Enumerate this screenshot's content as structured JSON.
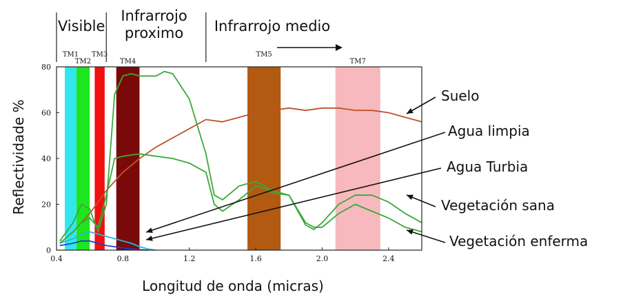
{
  "chart_data": {
    "type": "line",
    "xlabel": "Longitud de onda (micras)",
    "ylabel": "Reflectividade %",
    "xlim": [
      0.4,
      2.6
    ],
    "ylim": [
      0,
      80
    ],
    "x_ticks": [
      0.4,
      0.8,
      1.2,
      1.6,
      2.0,
      2.4
    ],
    "x_tick_labels": [
      "0.4",
      "0.8",
      "1.2",
      "1.6",
      "2.0",
      "2.4"
    ],
    "y_ticks": [
      0,
      20,
      40,
      60,
      80
    ],
    "y_tick_labels": [
      "0",
      "20",
      "40",
      "60",
      "80"
    ],
    "grid": false,
    "regions": [
      {
        "label": "Visible",
        "line2": "",
        "from": 0.4,
        "to": 0.7
      },
      {
        "label": "Infrarrojo",
        "line2": "proximo",
        "from": 0.7,
        "to": 1.3
      },
      {
        "label": "Infrarrojo medio",
        "line2": "",
        "from": 1.3,
        "to": 2.6
      }
    ],
    "bands": [
      {
        "name": "TM1",
        "from": 0.45,
        "to": 0.52,
        "color": "#33e6ee"
      },
      {
        "name": "TM2",
        "from": 0.52,
        "to": 0.6,
        "color": "#1ee61e"
      },
      {
        "name": "TM3",
        "from": 0.63,
        "to": 0.69,
        "color": "#f01010"
      },
      {
        "name": "TM4",
        "from": 0.76,
        "to": 0.9,
        "color": "#7a0a0a"
      },
      {
        "name": "TM5",
        "from": 1.55,
        "to": 1.75,
        "color": "#b35a12"
      },
      {
        "name": "TM7",
        "from": 2.08,
        "to": 2.35,
        "color": "#f7b9bd"
      }
    ],
    "series": [
      {
        "name": "Suelo",
        "color": "#c0522a",
        "x": [
          0.42,
          0.5,
          0.6,
          0.7,
          0.8,
          0.9,
          1.0,
          1.1,
          1.2,
          1.3,
          1.4,
          1.5,
          1.6,
          1.7,
          1.8,
          1.9,
          2.0,
          2.1,
          2.2,
          2.3,
          2.4,
          2.5,
          2.6
        ],
        "y": [
          3,
          8,
          16,
          26,
          34,
          40,
          45,
          49,
          53,
          57,
          56,
          58,
          60,
          61,
          62,
          61,
          62,
          62,
          61,
          61,
          60,
          58,
          56
        ]
      },
      {
        "name": "Agua limpia",
        "color": "#1a3ec8",
        "x": [
          0.42,
          0.5,
          0.55,
          0.6,
          0.65,
          0.7,
          0.75,
          0.8,
          0.85,
          0.9,
          0.95
        ],
        "y": [
          2,
          3,
          4,
          4,
          3,
          2,
          1.5,
          1,
          0.5,
          0.2,
          0
        ]
      },
      {
        "name": "Agua Turbia",
        "color": "#22b8d8",
        "x": [
          0.42,
          0.5,
          0.55,
          0.6,
          0.65,
          0.7,
          0.75,
          0.8,
          0.85,
          0.9,
          0.95,
          1.0
        ],
        "y": [
          3,
          5,
          7,
          8,
          7,
          6,
          5,
          4,
          3,
          1.5,
          0.5,
          0
        ]
      },
      {
        "name": "Vegetación sana",
        "color": "#3aa83a",
        "x": [
          0.42,
          0.5,
          0.55,
          0.6,
          0.65,
          0.7,
          0.75,
          0.8,
          0.85,
          0.9,
          1.0,
          1.05,
          1.1,
          1.2,
          1.3,
          1.35,
          1.4,
          1.45,
          1.5,
          1.6,
          1.65,
          1.7,
          1.8,
          1.9,
          1.95,
          2.0,
          2.1,
          2.2,
          2.3,
          2.4,
          2.5,
          2.6
        ],
        "y": [
          4,
          12,
          20,
          18,
          8,
          20,
          68,
          76,
          77,
          76,
          76,
          78,
          77,
          66,
          42,
          24,
          22,
          25,
          28,
          30,
          28,
          26,
          24,
          11,
          9,
          12,
          20,
          24,
          24,
          21,
          16,
          12
        ]
      },
      {
        "name": "Vegetación enferma",
        "color": "#3aa83a",
        "x": [
          0.42,
          0.5,
          0.55,
          0.6,
          0.65,
          0.7,
          0.75,
          0.8,
          0.9,
          1.0,
          1.1,
          1.2,
          1.3,
          1.35,
          1.4,
          1.5,
          1.6,
          1.65,
          1.7,
          1.8,
          1.9,
          1.95,
          2.0,
          2.1,
          2.2,
          2.3,
          2.4,
          2.5,
          2.6
        ],
        "y": [
          3,
          8,
          12,
          14,
          10,
          24,
          40,
          41,
          42,
          41,
          40,
          38,
          34,
          20,
          17,
          22,
          28,
          27,
          25,
          24,
          12,
          10,
          10,
          16,
          20,
          17,
          14,
          10,
          8
        ]
      }
    ]
  }
}
